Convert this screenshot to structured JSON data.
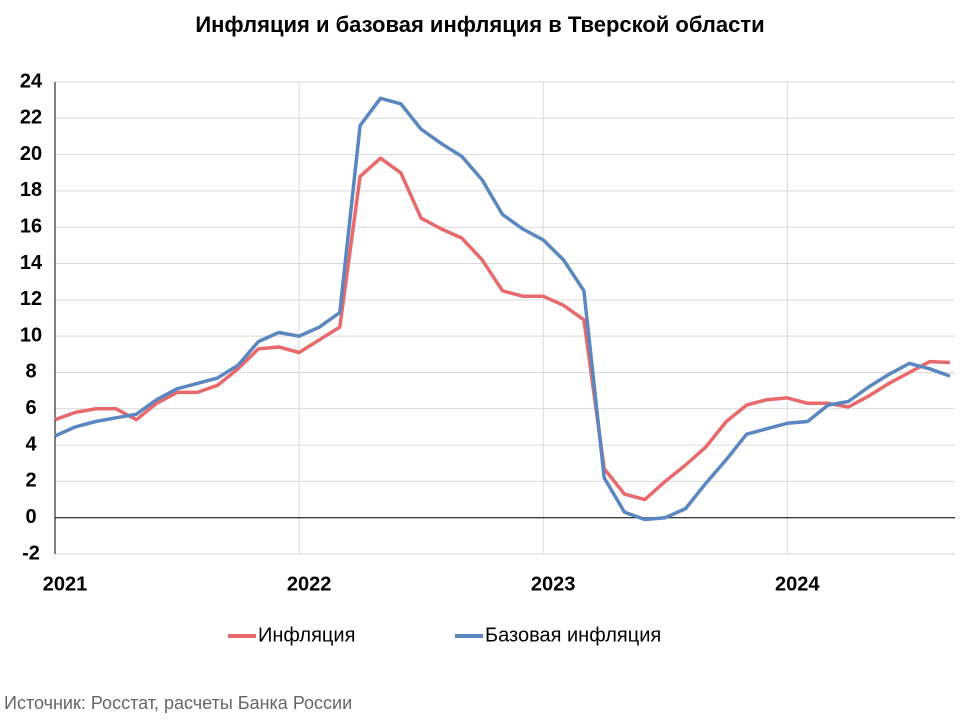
{
  "chart_data": {
    "type": "line",
    "title": "Инфляция и базовая инфляция в Тверской области",
    "source": "Источник: Росстат, расчеты Банка России",
    "categories": [
      "2021",
      null,
      null,
      null,
      null,
      null,
      null,
      null,
      null,
      null,
      null,
      null,
      "2022",
      null,
      null,
      null,
      null,
      null,
      null,
      null,
      null,
      null,
      null,
      null,
      "2023",
      null,
      null,
      null,
      null,
      null,
      null,
      null,
      null,
      null,
      null,
      null,
      "2024",
      null,
      null,
      null,
      null,
      null,
      null,
      null,
      null
    ],
    "series": [
      {
        "name": "Инфляция",
        "color": "#e8696b",
        "values": [
          5.4,
          5.8,
          6.0,
          6.0,
          5.4,
          6.3,
          6.9,
          6.9,
          7.3,
          8.2,
          9.3,
          9.4,
          9.1,
          9.8,
          10.5,
          18.8,
          19.8,
          19.0,
          16.5,
          15.9,
          15.4,
          14.2,
          12.5,
          12.2,
          12.2,
          11.7,
          10.9,
          2.7,
          1.3,
          1.0,
          2.0,
          2.9,
          3.9,
          5.3,
          6.2,
          6.5,
          6.6,
          6.3,
          6.3,
          6.1,
          6.7,
          7.4,
          8.0,
          8.6,
          8.55
        ]
      },
      {
        "name": "Базовая инфляция",
        "color": "#5b87c0",
        "values": [
          4.5,
          5.0,
          5.3,
          5.5,
          5.7,
          6.5,
          7.1,
          7.4,
          7.7,
          8.4,
          9.7,
          10.2,
          10.0,
          10.5,
          11.3,
          21.6,
          23.1,
          22.8,
          21.4,
          20.6,
          19.9,
          18.6,
          16.7,
          15.9,
          15.3,
          14.2,
          12.5,
          2.2,
          0.3,
          -0.1,
          0.0,
          0.5,
          1.9,
          3.2,
          4.6,
          4.9,
          5.2,
          5.3,
          6.2,
          6.4,
          7.2,
          7.9,
          8.5,
          8.2,
          7.8
        ]
      }
    ],
    "ylim": [
      -2,
      24
    ],
    "yticks": [
      -2,
      0,
      2,
      4,
      6,
      8,
      10,
      12,
      14,
      16,
      18,
      20,
      22,
      24
    ],
    "grid": true,
    "legend": "bottom"
  }
}
